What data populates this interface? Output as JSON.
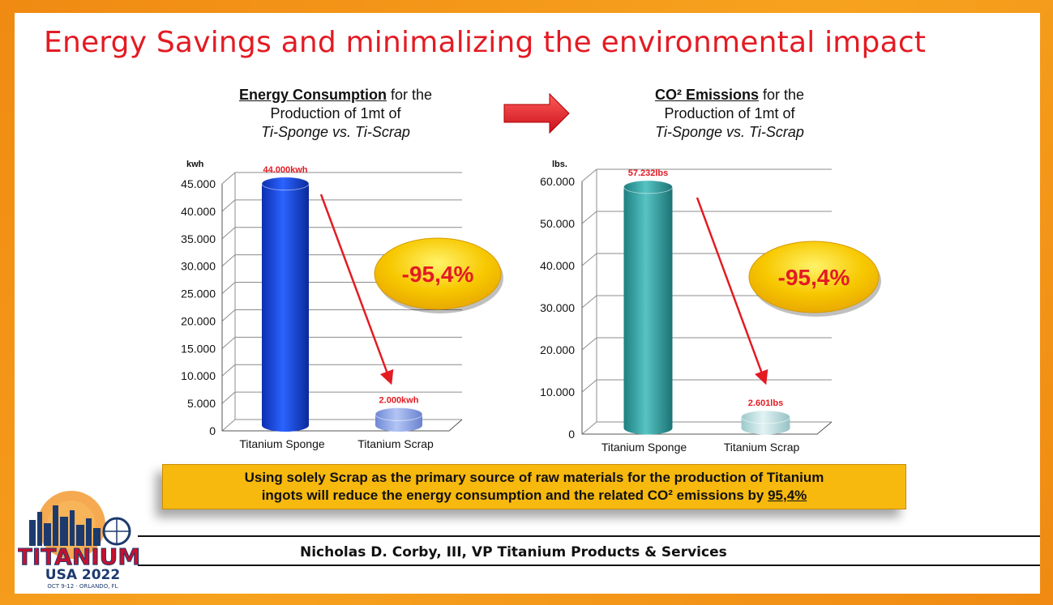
{
  "slide": {
    "title": "Energy Savings and minimalizing the environmental impact",
    "footer": "Nicholas D. Corby, III, VP Titanium Products & Services",
    "callout": {
      "line1": "Using solely Scrap as the primary source of raw materials for the production of Titanium",
      "line2": "ingots will reduce the energy consumption and the related CO² emissions by ",
      "percent": "95,4%"
    },
    "logo": {
      "name": "TITANIUM",
      "sub": "USA 2022",
      "tagline": "OCT 9-12 · ORLANDO, FL"
    },
    "arrow_color": "#e31b23",
    "badge_color": "#f7c200"
  },
  "chart_data": [
    {
      "type": "bar",
      "heading_bold": "Energy Consumption",
      "heading_rest": " for the",
      "heading_line2": "Production of 1mt of",
      "heading_line3": "Ti-Sponge vs. Ti-Scrap",
      "ylabel": "kwh",
      "ylim": [
        0,
        45000
      ],
      "yticks": [
        0,
        5000,
        10000,
        15000,
        20000,
        25000,
        30000,
        35000,
        40000,
        45000
      ],
      "ytick_labels": [
        "0",
        "5.000",
        "10.000",
        "15.000",
        "20.000",
        "25.000",
        "30.000",
        "35.000",
        "40.000",
        "45.000"
      ],
      "categories": [
        "Titanium Sponge",
        "Titanium Scrap"
      ],
      "values": [
        44000,
        2000
      ],
      "data_labels": [
        "44.000kwh",
        "2.000kwh"
      ],
      "colors": [
        "#1f4fe0",
        "#8fa9ec"
      ],
      "reduction_label": "-95,4%",
      "grid": true
    },
    {
      "type": "bar",
      "heading_bold": "CO² Emissions",
      "heading_rest": " for the",
      "heading_line2": "Production of 1mt of",
      "heading_line3": "Ti-Sponge vs. Ti-Scrap",
      "ylabel": "lbs.",
      "ylim": [
        0,
        60000
      ],
      "yticks": [
        0,
        10000,
        20000,
        30000,
        40000,
        50000,
        60000
      ],
      "ytick_labels": [
        "0",
        "10.000",
        "20.000",
        "30.000",
        "40.000",
        "50.000",
        "60.000"
      ],
      "categories": [
        "Titanium Sponge",
        "Titanium Scrap"
      ],
      "values": [
        57232,
        2601
      ],
      "data_labels": [
        "57.232lbs",
        "2.601lbs"
      ],
      "colors": [
        "#3aa6a6",
        "#b8e0e2"
      ],
      "reduction_label": "-95,4%",
      "grid": true
    }
  ]
}
